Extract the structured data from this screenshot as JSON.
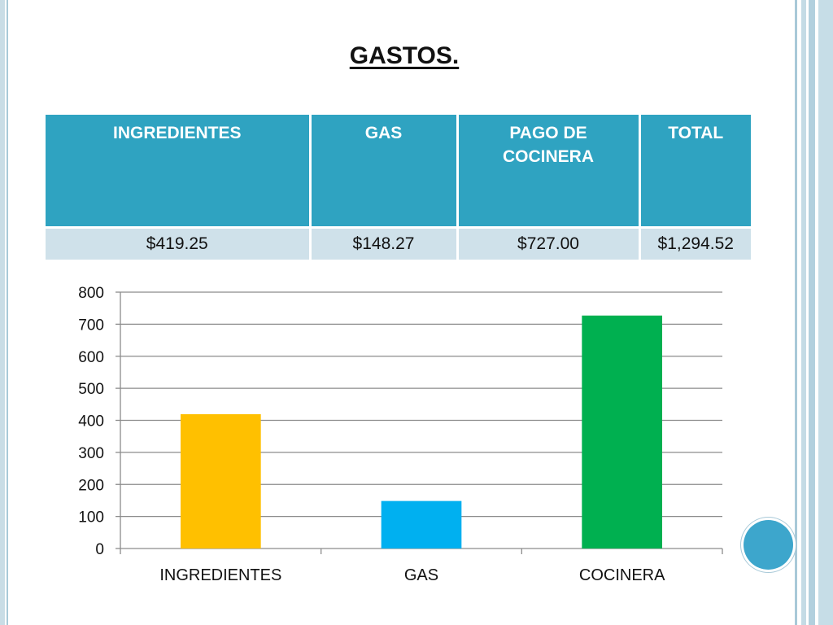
{
  "slide": {
    "title": "GASTOS."
  },
  "table": {
    "headers": [
      "INGREDIENTES",
      "GAS",
      "PAGO DE COCINERA",
      "TOTAL"
    ],
    "values": [
      "$419.25",
      "$148.27",
      "$727.00",
      "$1,294.52"
    ]
  },
  "chart_data": {
    "type": "bar",
    "categories": [
      "INGREDIENTES",
      "GAS",
      "COCINERA"
    ],
    "values": [
      419.25,
      148.27,
      727.0
    ],
    "colors": [
      "#ffc000",
      "#00b0f0",
      "#00b050"
    ],
    "ylim": [
      0,
      800
    ],
    "yticks": [
      0,
      100,
      200,
      300,
      400,
      500,
      600,
      700,
      800
    ],
    "grid": true,
    "title": "",
    "xlabel": "",
    "ylabel": ""
  },
  "theme": {
    "header_color": "#2fa3c1",
    "row_color": "#cfe1ea",
    "accent_dot": "#3da6cc"
  }
}
